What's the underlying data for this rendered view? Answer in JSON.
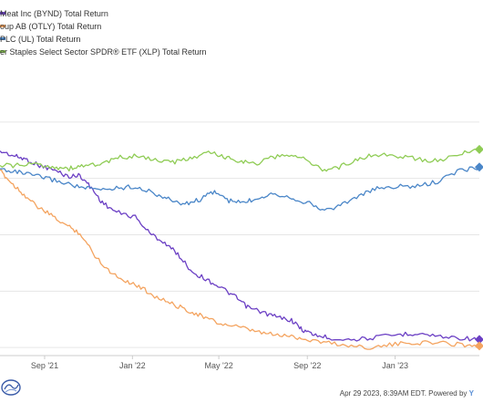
{
  "legend": [
    {
      "label": "Meat Inc (BYND) Total Return",
      "color": "#6b3fc4"
    },
    {
      "label": "oup AB (OTLY) Total Return",
      "color": "#f4a460"
    },
    {
      "label": "PLC (UL) Total Return",
      "color": "#4a86c8"
    },
    {
      "label": "er Staples Select Sector SPDR® ETF (XLP) Total Return",
      "color": "#8fcc55"
    }
  ],
  "footer": {
    "timestamp": "Apr 29 2023, 8:39AM EDT.",
    "powered_by": "Powered by",
    "brand": "Y"
  },
  "chart_data": {
    "type": "line",
    "x_ticks": [
      "Sep '21",
      "Jan '22",
      "May '22",
      "Sep '22",
      "Jan '23"
    ],
    "x_range": [
      "2021-07-01",
      "2023-04-28"
    ],
    "grid": true,
    "series": [
      {
        "name": "Meat Inc (BYND) Total Return",
        "color": "#6b3fc4",
        "points": [
          [
            "2021-07-01",
            47
          ],
          [
            "2021-07-20",
            44
          ],
          [
            "2021-08-05",
            42
          ],
          [
            "2021-08-25",
            38
          ],
          [
            "2021-09-15",
            35
          ],
          [
            "2021-10-05",
            31
          ],
          [
            "2021-10-20",
            32
          ],
          [
            "2021-11-05",
            24
          ],
          [
            "2021-11-20",
            15
          ],
          [
            "2021-12-10",
            9
          ],
          [
            "2022-01-05",
            6
          ],
          [
            "2022-01-25",
            -4
          ],
          [
            "2022-02-15",
            -10
          ],
          [
            "2022-03-05",
            -17
          ],
          [
            "2022-03-25",
            -28
          ],
          [
            "2022-04-15",
            -33
          ],
          [
            "2022-05-05",
            -38
          ],
          [
            "2022-05-25",
            -44
          ],
          [
            "2022-06-10",
            -50
          ],
          [
            "2022-06-30",
            -53
          ],
          [
            "2022-07-20",
            -56
          ],
          [
            "2022-08-10",
            -58
          ],
          [
            "2022-08-25",
            -64
          ],
          [
            "2022-09-10",
            -67
          ],
          [
            "2022-10-01",
            -69
          ],
          [
            "2022-11-01",
            -70
          ],
          [
            "2022-12-01",
            -69
          ],
          [
            "2023-01-05",
            -67
          ],
          [
            "2023-02-01",
            -66
          ],
          [
            "2023-03-01",
            -68
          ],
          [
            "2023-04-01",
            -69
          ],
          [
            "2023-04-28",
            -70
          ]
        ]
      },
      {
        "name": "oup AB (OTLY) Total Return",
        "color": "#f4a460",
        "points": [
          [
            "2021-07-01",
            35
          ],
          [
            "2021-07-15",
            28
          ],
          [
            "2021-08-01",
            21
          ],
          [
            "2021-08-20",
            13
          ],
          [
            "2021-09-10",
            7
          ],
          [
            "2021-10-01",
            1
          ],
          [
            "2021-10-20",
            -4
          ],
          [
            "2021-11-10",
            -18
          ],
          [
            "2021-12-01",
            -28
          ],
          [
            "2021-12-20",
            -33
          ],
          [
            "2022-01-10",
            -37
          ],
          [
            "2022-02-01",
            -43
          ],
          [
            "2022-02-25",
            -48
          ],
          [
            "2022-03-20",
            -52
          ],
          [
            "2022-04-10",
            -56
          ],
          [
            "2022-05-01",
            -60
          ],
          [
            "2022-05-25",
            -62
          ],
          [
            "2022-06-20",
            -65
          ],
          [
            "2022-07-15",
            -67
          ],
          [
            "2022-08-10",
            -68
          ],
          [
            "2022-09-01",
            -70
          ],
          [
            "2022-10-01",
            -72
          ],
          [
            "2022-11-01",
            -74
          ],
          [
            "2022-12-01",
            -75
          ],
          [
            "2023-01-01",
            -73
          ],
          [
            "2023-02-01",
            -72
          ],
          [
            "2023-03-01",
            -72
          ],
          [
            "2023-04-01",
            -73
          ],
          [
            "2023-04-28",
            -74
          ]
        ]
      },
      {
        "name": "PLC (UL) Total Return",
        "color": "#4a86c8",
        "points": [
          [
            "2021-07-01",
            36
          ],
          [
            "2021-07-25",
            34
          ],
          [
            "2021-08-15",
            32
          ],
          [
            "2021-09-05",
            30
          ],
          [
            "2021-10-01",
            27
          ],
          [
            "2021-10-25",
            24
          ],
          [
            "2021-11-15",
            23
          ],
          [
            "2021-12-10",
            24
          ],
          [
            "2022-01-05",
            25
          ],
          [
            "2022-01-30",
            21
          ],
          [
            "2022-02-20",
            17
          ],
          [
            "2022-03-15",
            14
          ],
          [
            "2022-04-05",
            17
          ],
          [
            "2022-04-25",
            22
          ],
          [
            "2022-05-15",
            16
          ],
          [
            "2022-06-05",
            15
          ],
          [
            "2022-06-25",
            18
          ],
          [
            "2022-07-15",
            21
          ],
          [
            "2022-08-10",
            18
          ],
          [
            "2022-09-01",
            15
          ],
          [
            "2022-09-25",
            10
          ],
          [
            "2022-10-20",
            14
          ],
          [
            "2022-11-15",
            20
          ],
          [
            "2022-12-10",
            24
          ],
          [
            "2023-01-05",
            25
          ],
          [
            "2023-02-01",
            25
          ],
          [
            "2023-03-01",
            28
          ],
          [
            "2023-04-01",
            35
          ],
          [
            "2023-04-28",
            37
          ]
        ]
      },
      {
        "name": "er Staples Select Sector SPDR® ETF (XLP) Total Return",
        "color": "#8fcc55",
        "points": [
          [
            "2021-07-01",
            38
          ],
          [
            "2021-07-25",
            38
          ],
          [
            "2021-08-20",
            39
          ],
          [
            "2021-09-15",
            37
          ],
          [
            "2021-10-05",
            36
          ],
          [
            "2021-10-25",
            38
          ],
          [
            "2021-11-20",
            39
          ],
          [
            "2021-12-15",
            43
          ],
          [
            "2022-01-10",
            44
          ],
          [
            "2022-02-05",
            41
          ],
          [
            "2022-03-01",
            40
          ],
          [
            "2022-03-25",
            43
          ],
          [
            "2022-04-20",
            46
          ],
          [
            "2022-05-10",
            43
          ],
          [
            "2022-05-30",
            41
          ],
          [
            "2022-06-20",
            39
          ],
          [
            "2022-07-15",
            43
          ],
          [
            "2022-08-10",
            45
          ],
          [
            "2022-09-01",
            41
          ],
          [
            "2022-09-25",
            35
          ],
          [
            "2022-10-15",
            37
          ],
          [
            "2022-11-10",
            42
          ],
          [
            "2022-12-05",
            45
          ],
          [
            "2023-01-05",
            44
          ],
          [
            "2023-02-01",
            42
          ],
          [
            "2023-03-01",
            41
          ],
          [
            "2023-04-01",
            45
          ],
          [
            "2023-04-28",
            48
          ]
        ]
      }
    ]
  }
}
